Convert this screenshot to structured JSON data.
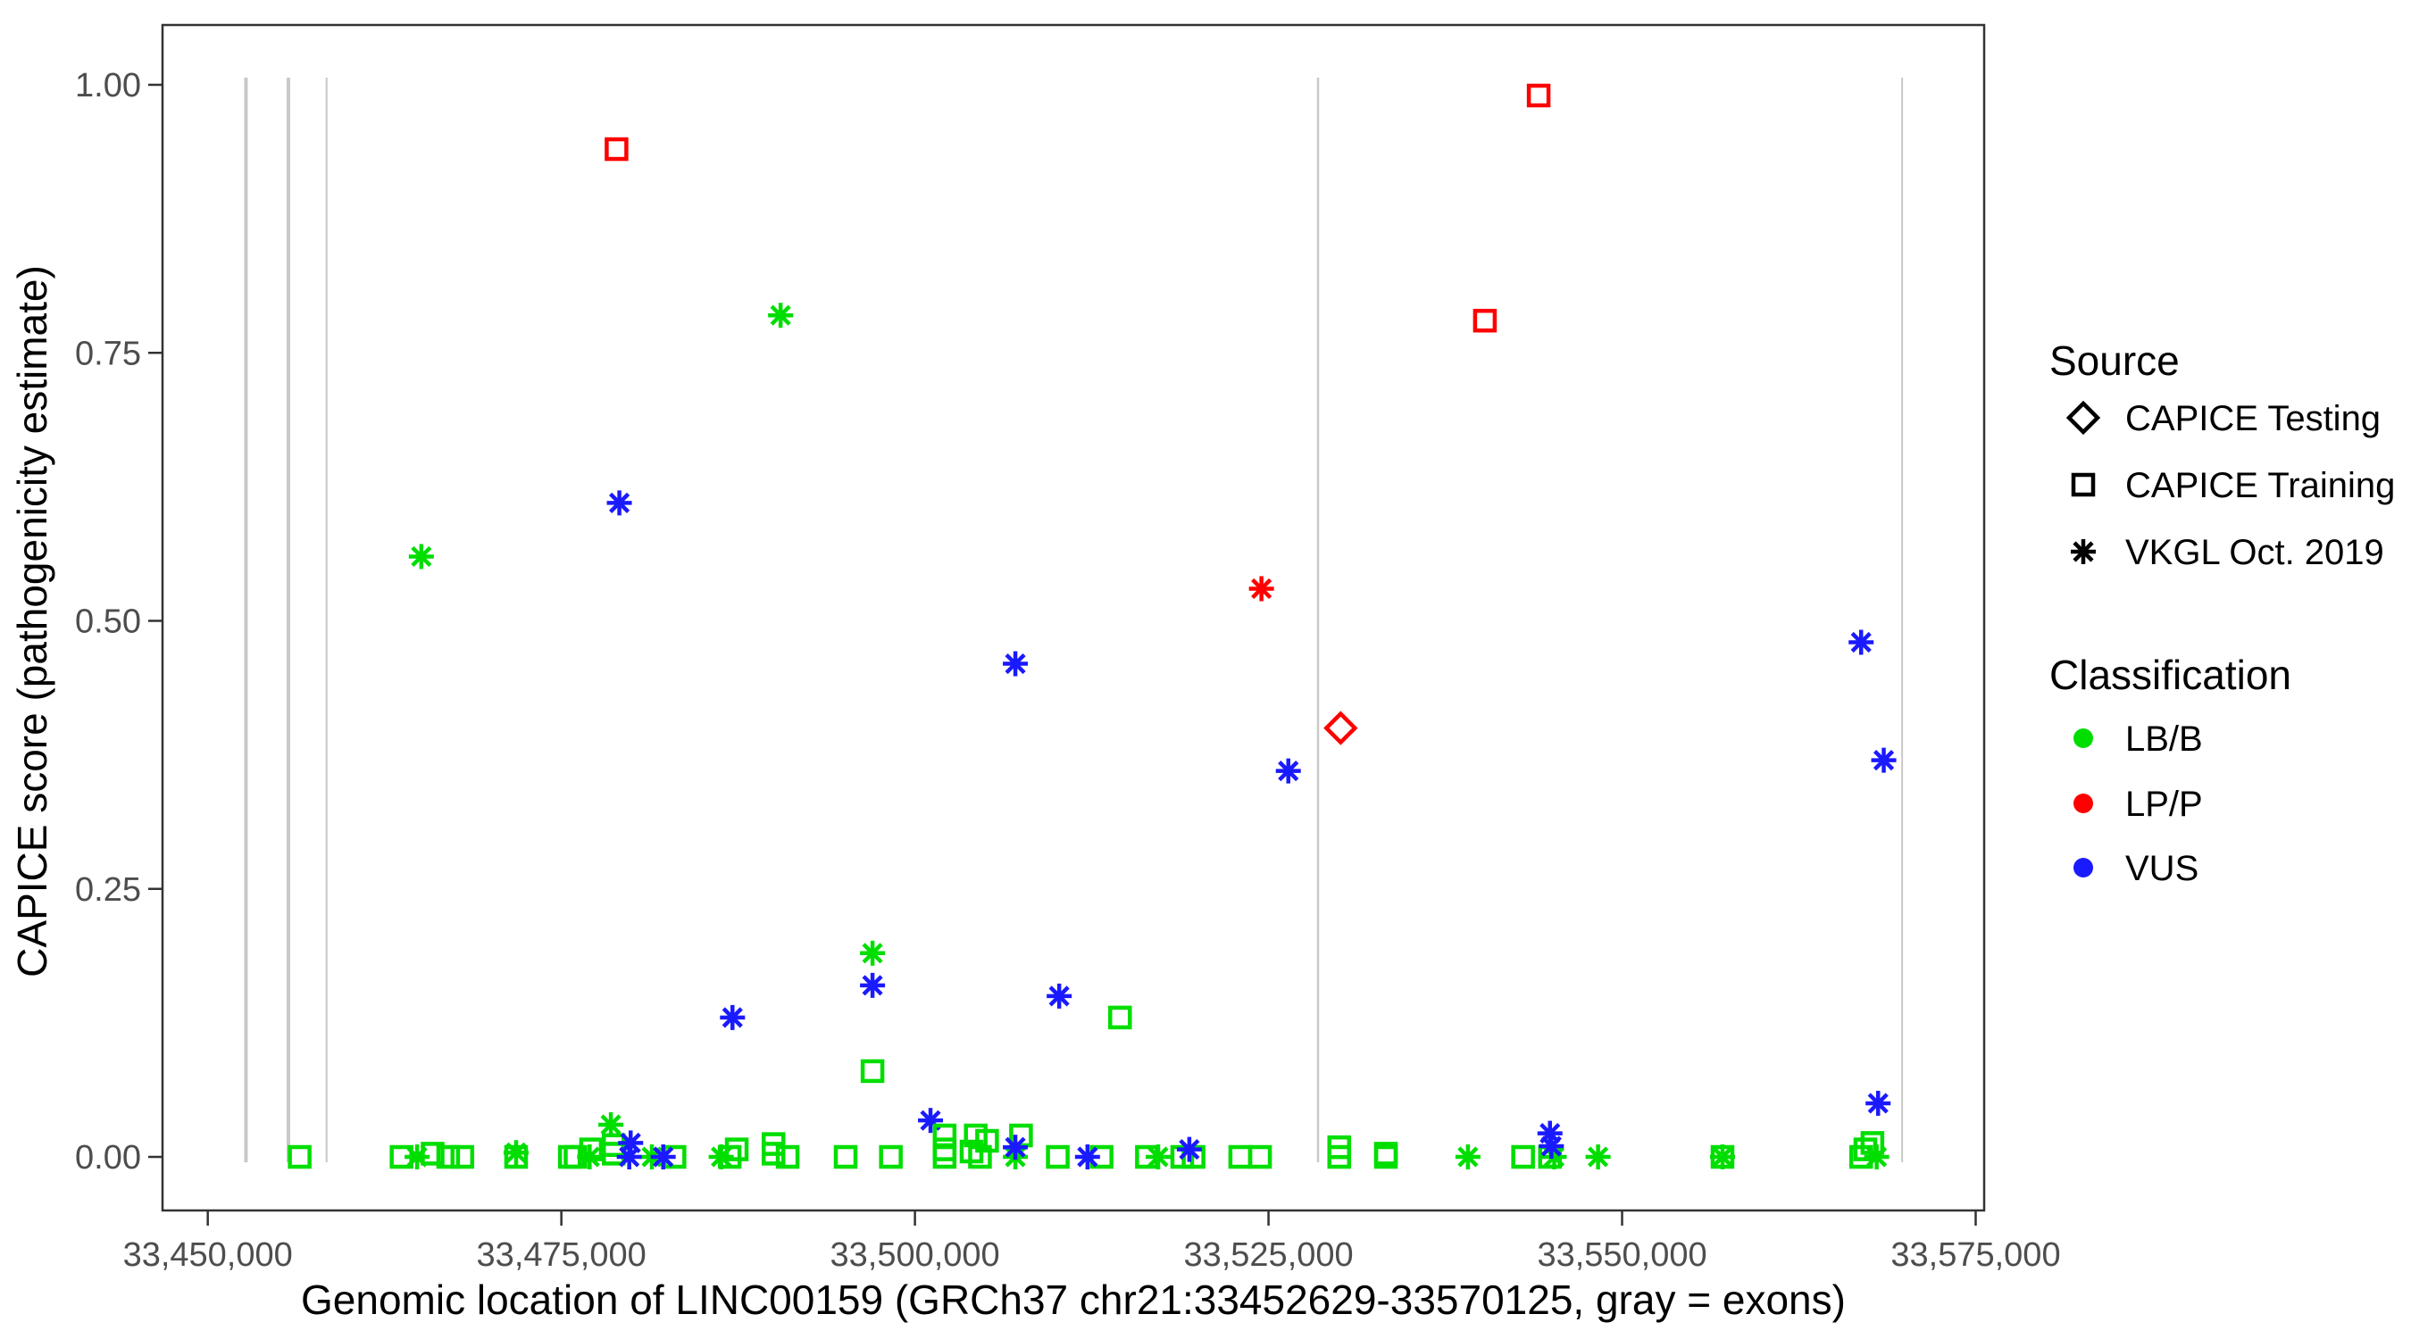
{
  "chart_data": {
    "type": "scatter",
    "xlabel": "Genomic location of LINC00159 (GRCh37 chr21:33452629-33570125, gray = exons)",
    "ylabel": "CAPICE score (pathogenicity estimate)",
    "xlim": [
      33446800,
      33575600
    ],
    "ylim": [
      0,
      1
    ],
    "grid": false,
    "x_ticks": [
      33450000,
      33475000,
      33500000,
      33525000,
      33550000,
      33575000
    ],
    "x_tick_labels": [
      "33,450,000",
      "33,475,000",
      "33,500,000",
      "33,525,000",
      "33,550,000",
      "33,575,000"
    ],
    "y_ticks": [
      0,
      0.25,
      0.5,
      0.75,
      1
    ],
    "y_tick_labels": [
      "0.00",
      "0.25",
      "0.50",
      "0.75",
      "1.00"
    ],
    "colors": {
      "LB/B": "#00DE00",
      "LP/P": "#FF0000",
      "VUS": "#1A1AFF"
    },
    "exon_color": "#C8C8C8",
    "exons": [
      {
        "loc": 33452700,
        "width": 4
      },
      {
        "loc": 33455700,
        "width": 4
      },
      {
        "loc": 33458400,
        "width": 2
      },
      {
        "loc": 33528500,
        "width": 2.5
      },
      {
        "loc": 33569800,
        "width": 2
      }
    ],
    "points_format": "[genomic_location, capice_score, classification, source] ; source: testing=CAPICE Testing (diamond), training=CAPICE Training (square), vkgl=VKGL Oct. 2019 (asterisk)",
    "points": [
      [
        33478900,
        0.94,
        "LP/P",
        "training"
      ],
      [
        33544100,
        0.99,
        "LP/P",
        "training"
      ],
      [
        33540300,
        0.78,
        "LP/P",
        "training"
      ],
      [
        33530100,
        0.4,
        "LP/P",
        "testing"
      ],
      [
        33524500,
        0.53,
        "LP/P",
        "vkgl"
      ],
      [
        33465100,
        0.56,
        "LB/B",
        "vkgl"
      ],
      [
        33490500,
        0.785,
        "LB/B",
        "vkgl"
      ],
      [
        33497000,
        0.19,
        "LB/B",
        "vkgl"
      ],
      [
        33478500,
        0.03,
        "LB/B",
        "vkgl"
      ],
      [
        33479100,
        0.61,
        "VUS",
        "vkgl"
      ],
      [
        33507100,
        0.46,
        "VUS",
        "vkgl"
      ],
      [
        33526400,
        0.36,
        "VUS",
        "vkgl"
      ],
      [
        33497000,
        0.16,
        "VUS",
        "vkgl"
      ],
      [
        33487100,
        0.13,
        "VUS",
        "vkgl"
      ],
      [
        33510200,
        0.15,
        "VUS",
        "vkgl"
      ],
      [
        33566900,
        0.48,
        "VUS",
        "vkgl"
      ],
      [
        33568500,
        0.37,
        "VUS",
        "vkgl"
      ],
      [
        33568100,
        0.05,
        "VUS",
        "vkgl"
      ],
      [
        33501100,
        0.034,
        "VUS",
        "vkgl"
      ],
      [
        33514500,
        0.13,
        "LB/B",
        "training"
      ],
      [
        33497000,
        0.08,
        "LB/B",
        "training"
      ],
      [
        33456500,
        0,
        "LB/B",
        "training"
      ],
      [
        33463700,
        0,
        "LB/B",
        "training"
      ],
      [
        33465900,
        0.003,
        "LB/B",
        "training"
      ],
      [
        33467000,
        0,
        "LB/B",
        "training"
      ],
      [
        33468000,
        0,
        "LB/B",
        "training"
      ],
      [
        33471800,
        0,
        "LB/B",
        "training"
      ],
      [
        33475600,
        0,
        "LB/B",
        "training"
      ],
      [
        33476000,
        0,
        "LB/B",
        "training"
      ],
      [
        33477100,
        0.007,
        "LB/B",
        "training"
      ],
      [
        33478700,
        0.011,
        "LB/B",
        "training"
      ],
      [
        33478700,
        0.003,
        "LB/B",
        "training"
      ],
      [
        33483000,
        0,
        "LB/B",
        "training"
      ],
      [
        33486900,
        0,
        "LB/B",
        "training"
      ],
      [
        33487400,
        0.007,
        "LB/B",
        "training"
      ],
      [
        33490000,
        0.012,
        "LB/B",
        "training"
      ],
      [
        33490000,
        0.003,
        "LB/B",
        "training"
      ],
      [
        33491000,
        0,
        "LB/B",
        "training"
      ],
      [
        33495100,
        0,
        "LB/B",
        "training"
      ],
      [
        33498300,
        0,
        "LB/B",
        "training"
      ],
      [
        33502100,
        0.02,
        "LB/B",
        "training"
      ],
      [
        33502100,
        0.007,
        "LB/B",
        "training"
      ],
      [
        33502100,
        0,
        "LB/B",
        "training"
      ],
      [
        33504300,
        0.02,
        "LB/B",
        "training"
      ],
      [
        33505100,
        0.015,
        "LB/B",
        "training"
      ],
      [
        33504000,
        0.005,
        "LB/B",
        "training"
      ],
      [
        33504600,
        0,
        "LB/B",
        "training"
      ],
      [
        33507500,
        0.02,
        "LB/B",
        "training"
      ],
      [
        33510100,
        0,
        "LB/B",
        "training"
      ],
      [
        33513200,
        0,
        "LB/B",
        "training"
      ],
      [
        33516400,
        0,
        "LB/B",
        "training"
      ],
      [
        33518900,
        0,
        "LB/B",
        "training"
      ],
      [
        33519700,
        0,
        "LB/B",
        "training"
      ],
      [
        33523000,
        0,
        "LB/B",
        "training"
      ],
      [
        33524400,
        0,
        "LB/B",
        "training"
      ],
      [
        33530000,
        0.009,
        "LB/B",
        "training"
      ],
      [
        33530000,
        0,
        "LB/B",
        "training"
      ],
      [
        33533300,
        0.003,
        "LB/B",
        "training"
      ],
      [
        33533300,
        0,
        "LB/B",
        "training"
      ],
      [
        33543000,
        0,
        "LB/B",
        "training"
      ],
      [
        33544900,
        0,
        "LB/B",
        "training"
      ],
      [
        33557100,
        0,
        "LB/B",
        "training"
      ],
      [
        33567200,
        0.007,
        "LB/B",
        "training"
      ],
      [
        33567700,
        0.013,
        "LB/B",
        "training"
      ],
      [
        33566900,
        0,
        "LB/B",
        "training"
      ],
      [
        33464800,
        0,
        "LB/B",
        "vkgl"
      ],
      [
        33471800,
        0.004,
        "LB/B",
        "vkgl"
      ],
      [
        33477000,
        0,
        "LB/B",
        "vkgl"
      ],
      [
        33481400,
        0,
        "LB/B",
        "vkgl"
      ],
      [
        33486300,
        0,
        "LB/B",
        "vkgl"
      ],
      [
        33507100,
        0,
        "LB/B",
        "vkgl"
      ],
      [
        33517200,
        0,
        "LB/B",
        "vkgl"
      ],
      [
        33539100,
        0,
        "LB/B",
        "vkgl"
      ],
      [
        33545200,
        0,
        "LB/B",
        "vkgl"
      ],
      [
        33548300,
        0,
        "LB/B",
        "vkgl"
      ],
      [
        33557100,
        0,
        "LB/B",
        "vkgl"
      ],
      [
        33568000,
        0,
        "LB/B",
        "vkgl"
      ],
      [
        33479900,
        0.013,
        "VUS",
        "vkgl"
      ],
      [
        33479800,
        0,
        "VUS",
        "vkgl"
      ],
      [
        33482200,
        0,
        "VUS",
        "vkgl"
      ],
      [
        33507100,
        0.009,
        "VUS",
        "vkgl"
      ],
      [
        33512200,
        0,
        "VUS",
        "vkgl"
      ],
      [
        33519400,
        0.007,
        "VUS",
        "vkgl"
      ],
      [
        33544900,
        0.022,
        "VUS",
        "vkgl"
      ],
      [
        33545000,
        0.01,
        "VUS",
        "vkgl"
      ]
    ]
  },
  "legend": {
    "source": {
      "title": "Source",
      "items": [
        {
          "label": "CAPICE Testing",
          "marker": "diamond"
        },
        {
          "label": "CAPICE Training",
          "marker": "square"
        },
        {
          "label": "VKGL Oct. 2019",
          "marker": "asterisk"
        }
      ]
    },
    "classification": {
      "title": "Classification",
      "items": [
        {
          "label": "LB/B",
          "color": "#00DE00"
        },
        {
          "label": "LP/P",
          "color": "#FF0000"
        },
        {
          "label": "VUS",
          "color": "#1A1AFF"
        }
      ]
    }
  }
}
